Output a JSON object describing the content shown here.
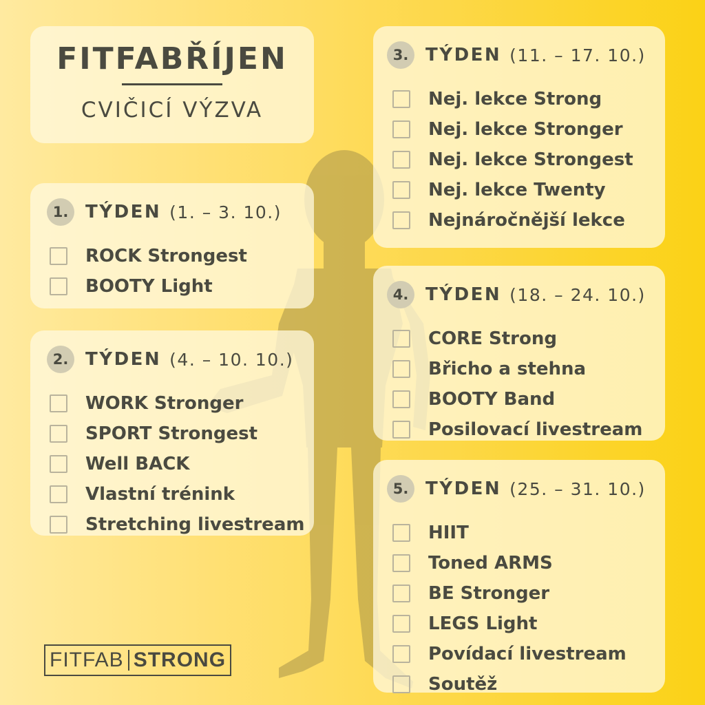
{
  "header": {
    "title": "FITFABŘÍJEN",
    "subtitle": "CVIČICÍ VÝZVA"
  },
  "weeks": [
    {
      "number": "1.",
      "label": "TÝDEN",
      "dates": "(1. – 3. 10.)",
      "items": [
        "ROCK Strongest",
        "BOOTY Light"
      ]
    },
    {
      "number": "2.",
      "label": "TÝDEN",
      "dates": "(4. – 10. 10.)",
      "items": [
        "WORK Stronger",
        "SPORT Strongest",
        "Well BACK",
        "Vlastní trénink",
        "Stretching livestream"
      ]
    },
    {
      "number": "3.",
      "label": "TÝDEN",
      "dates": "(11. – 17. 10.)",
      "items": [
        "Nej. lekce Strong",
        "Nej. lekce Stronger",
        "Nej. lekce Strongest",
        "Nej. lekce Twenty",
        "Nejnáročnější lekce"
      ]
    },
    {
      "number": "4.",
      "label": "TÝDEN",
      "dates": "(18. – 24. 10.)",
      "items": [
        "CORE Strong",
        "Břicho a stehna",
        "BOOTY Band",
        "Posilovací livestream"
      ]
    },
    {
      "number": "5.",
      "label": "TÝDEN",
      "dates": "(25. – 31. 10.)",
      "items": [
        "HIIT",
        "Toned ARMS",
        "BE Stronger",
        "LEGS Light",
        "Povídací livestream",
        "Soutěž"
      ]
    }
  ],
  "logo": {
    "part1": "FITFAB",
    "part2": "STRONG"
  },
  "colors": {
    "text": "#4a4a40",
    "card": "#fff9de",
    "accent": "#fbd216"
  }
}
